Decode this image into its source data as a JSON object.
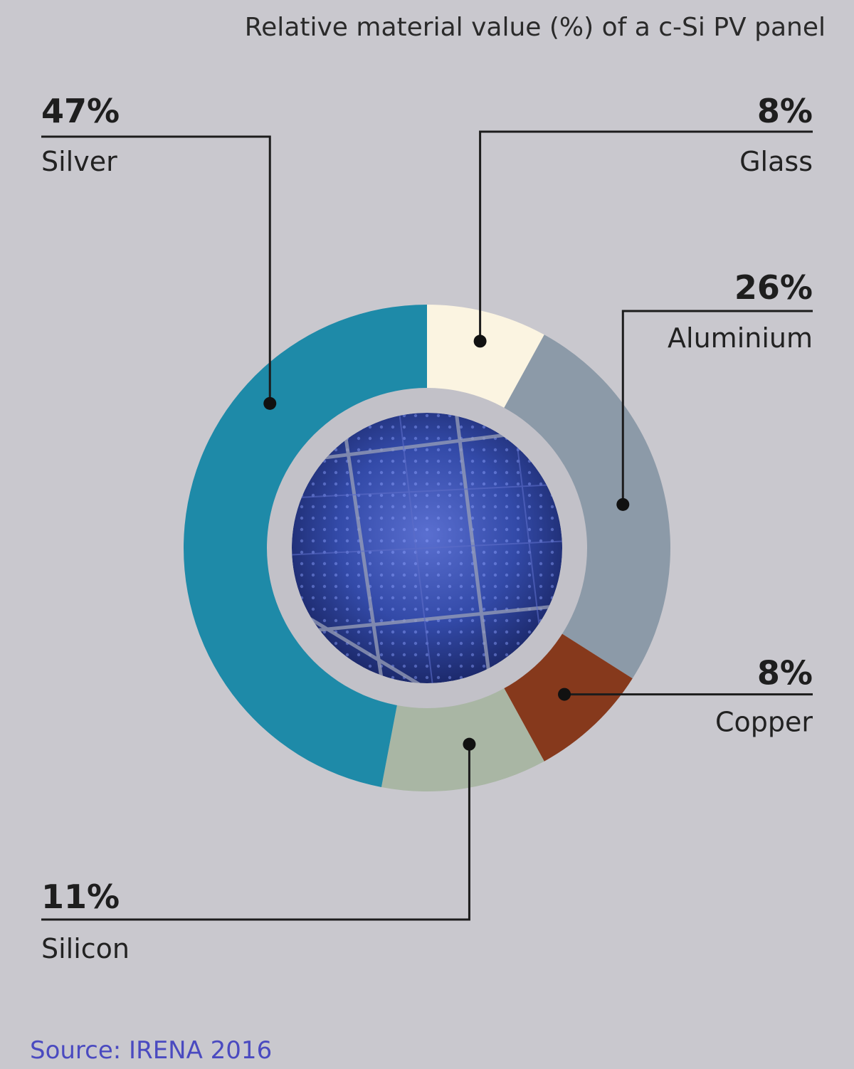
{
  "chart_data": {
    "type": "pie",
    "title": "Relative material value (%) of a c-Si PV panel",
    "unit": "%",
    "donut": true,
    "center_image": "solar-panel-photo",
    "slices": [
      {
        "label": "Glass",
        "value": 8,
        "value_label": "8%",
        "color": "#fbf4e1"
      },
      {
        "label": "Aluminium",
        "value": 26,
        "value_label": "26%",
        "color": "#8c9aa8"
      },
      {
        "label": "Copper",
        "value": 8,
        "value_label": "8%",
        "color": "#86391c"
      },
      {
        "label": "Silicon",
        "value": 11,
        "value_label": "11%",
        "color": "#a9b6a4"
      },
      {
        "label": "Silver",
        "value": 47,
        "value_label": "47%",
        "color": "#1e8aa8"
      }
    ]
  },
  "source": "Source: IRENA 2016",
  "colors": {
    "background": "#c9c8ce",
    "inner_ring": "#c2c1c8",
    "source_text": "#4a4ac0"
  }
}
